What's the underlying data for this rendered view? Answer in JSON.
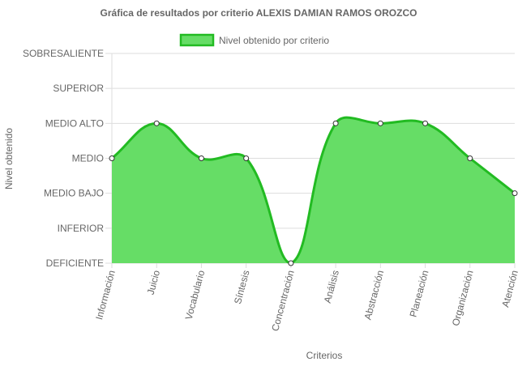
{
  "chart_data": {
    "type": "area",
    "title": "Gráfica de resultados por criterio ALEXIS DAMIAN RAMOS OROZCO",
    "xlabel": "Criterios",
    "ylabel": "Nivel obtenido",
    "categories": [
      "Información",
      "Juicio",
      "Vocabulario",
      "Síntesis",
      "Concentración",
      "Análisis",
      "Abstracción",
      "Planeación",
      "Organización",
      "Atención"
    ],
    "y_levels": [
      "DEFICIENTE",
      "INFERIOR",
      "MEDIO BAJO",
      "MEDIO",
      "MEDIO ALTO",
      "SUPERIOR",
      "SOBRESALIENTE"
    ],
    "series": [
      {
        "name": "Nivel obtenido por criterio",
        "values": [
          3,
          4,
          3,
          3,
          0,
          4,
          4,
          4,
          3,
          2
        ]
      }
    ],
    "ylim": [
      0,
      6
    ],
    "grid": true,
    "legend": "top-center",
    "colors": {
      "fill": "#66dd66",
      "line": "#22bb22",
      "point_fill": "#ffffff",
      "point_stroke": "#333333",
      "grid": "#dddddd"
    }
  }
}
